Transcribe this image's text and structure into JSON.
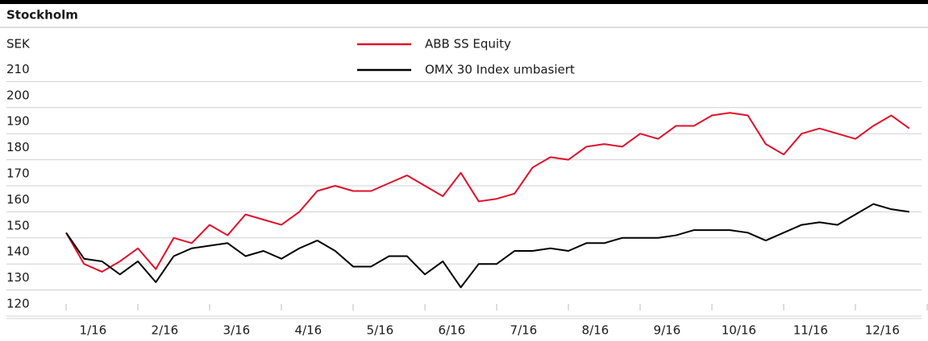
{
  "chart_data": {
    "type": "line",
    "title": "Stockholm",
    "y_label": "SEK",
    "categories": [
      null,
      "1/16",
      null,
      null,
      null,
      "2/16",
      null,
      null,
      null,
      "3/16",
      null,
      null,
      null,
      "4/16",
      null,
      null,
      null,
      "5/16",
      null,
      null,
      null,
      "6/16",
      null,
      null,
      null,
      "7/16",
      null,
      null,
      null,
      "8/16",
      null,
      null,
      null,
      "9/16",
      null,
      null,
      null,
      "10/16",
      null,
      null,
      null,
      "11/16",
      null,
      null,
      null,
      "12/16",
      null,
      null
    ],
    "series": [
      {
        "name": "ABB SS Equity",
        "color": "#e0102b",
        "values": [
          152,
          140,
          137,
          141,
          146,
          138,
          150,
          148,
          155,
          151,
          159,
          157,
          155,
          160,
          168,
          170,
          168,
          168,
          171,
          174,
          170,
          166,
          175,
          164,
          165,
          167,
          177,
          181,
          180,
          185,
          186,
          185,
          190,
          188,
          193,
          193,
          197,
          198,
          197,
          186,
          182,
          190,
          192,
          190,
          188,
          193,
          197,
          192
        ]
      },
      {
        "name": "OMX 30 Index umbasiert",
        "color": "#000000",
        "values": [
          152,
          142,
          141,
          136,
          141,
          133,
          143,
          146,
          147,
          148,
          143,
          145,
          142,
          146,
          149,
          145,
          139,
          139,
          143,
          143,
          136,
          141,
          131,
          140,
          140,
          145,
          145,
          146,
          145,
          148,
          148,
          150,
          150,
          150,
          151,
          153,
          153,
          153,
          152,
          149,
          152,
          155,
          156,
          155,
          159,
          163,
          161,
          160
        ]
      }
    ],
    "ylim": [
      120,
      220
    ],
    "yticks": [
      120,
      130,
      140,
      150,
      160,
      170,
      180,
      190,
      200,
      210
    ],
    "grid": true
  }
}
